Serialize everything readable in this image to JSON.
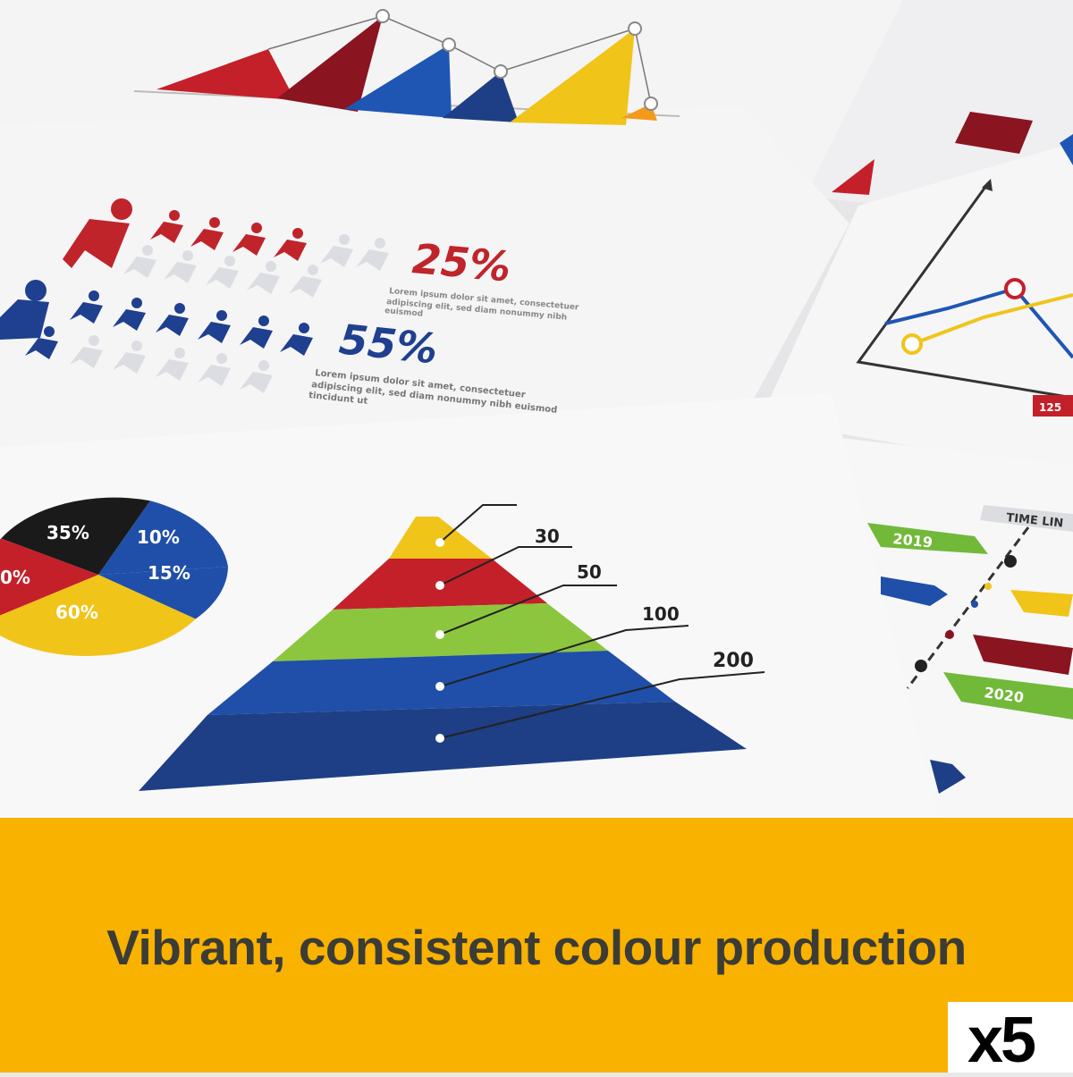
{
  "banner": {
    "tagline": "Vibrant, consistent colour production",
    "quantity_badge": "x5",
    "background_color": "#f9b200",
    "text_color": "#3c3c36"
  },
  "photo": {
    "people_chart": {
      "female_percent": "25%",
      "male_percent": "55%",
      "female_caption_line1": "Lorem ipsum dolor sit amet, consectetuer",
      "female_caption_line2": "adipiscing elit, sed diam nonummy nibh",
      "female_caption_line3": "euismod",
      "male_caption_line1": "Lorem ipsum dolor sit amet, consectetuer",
      "male_caption_line2": "adipiscing elit, sed diam nonummy nibh euismod",
      "male_caption_line3": "tincidunt ut",
      "female_color": "#c0242b",
      "male_color": "#1f3f8f"
    },
    "pie_labels": [
      "35%",
      "10%",
      "15%",
      "60%",
      "0%"
    ],
    "pyramid_labels": [
      "30",
      "50",
      "100",
      "200"
    ],
    "timeline": {
      "title": "TIME LIN",
      "years": [
        "2019",
        "2020"
      ]
    },
    "line_chart_label": "125"
  }
}
